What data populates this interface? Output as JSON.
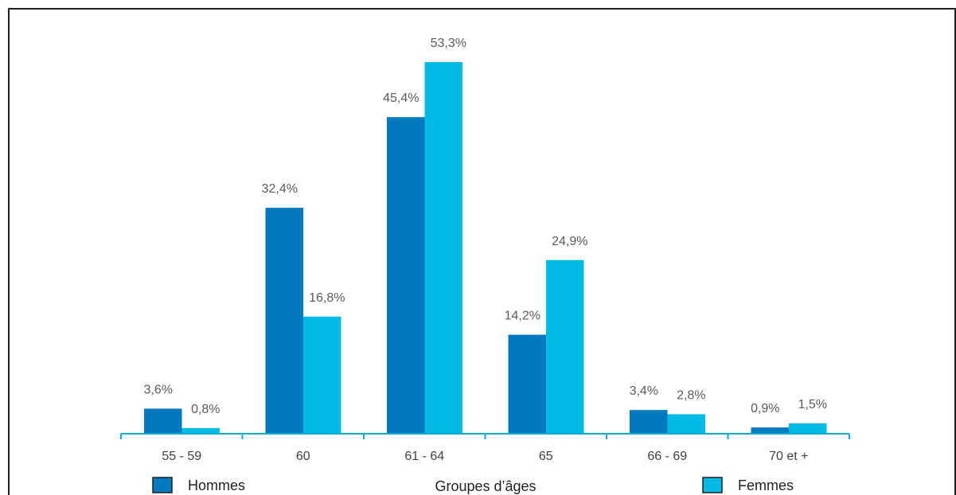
{
  "chart_data": {
    "type": "bar",
    "title": "",
    "xlabel": "Groupes d’âges",
    "ylabel": "",
    "categories": [
      "55 - 59",
      "60",
      "61 - 64",
      "65",
      "66 - 69",
      "70 et +"
    ],
    "series": [
      {
        "name": "Hommes",
        "color": "#0079c1",
        "values": [
          3.6,
          32.4,
          45.4,
          14.2,
          3.4,
          0.9
        ],
        "labels": [
          "3,6%",
          "32,4%",
          "45,4%",
          "14,2%",
          "3,4%",
          "0,9%"
        ]
      },
      {
        "name": "Femmes",
        "color": "#00bce4",
        "values": [
          0.8,
          16.8,
          53.3,
          24.9,
          2.8,
          1.5
        ],
        "labels": [
          "0,8%",
          "16,8%",
          "53,3%",
          "24,9%",
          "2,8%",
          "1,5%"
        ]
      }
    ],
    "ylim": [
      0,
      53.3
    ],
    "grid": false,
    "legend_position": "bottom",
    "axis_color": "#00b0d8"
  }
}
